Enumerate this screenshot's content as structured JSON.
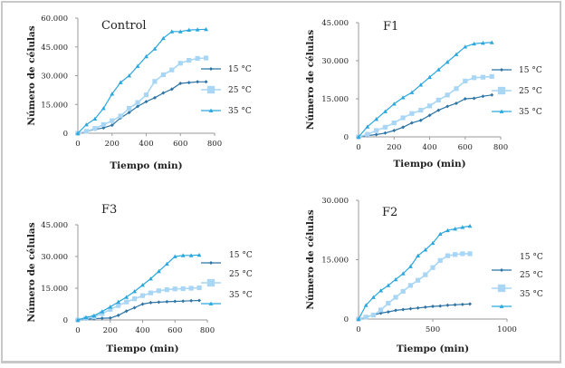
{
  "colors": {
    "15": "#2e75a6",
    "25": "#a8d6f4",
    "35": "#2aa7dd",
    "axis": "#9a9a9a"
  },
  "chart_data": [
    {
      "type": "line",
      "title": "Control",
      "xlabel": "Tiempo (min)",
      "ylabel": "Número de células",
      "xlim": [
        0,
        800
      ],
      "ylim": [
        0,
        60000
      ],
      "xticks": [
        0,
        200,
        400,
        600,
        800
      ],
      "xtick_labels": [
        "0",
        "200",
        "400",
        "600",
        "800"
      ],
      "yticks": [
        0,
        15000,
        30000,
        45000,
        60000
      ],
      "ytick_labels": [
        "0",
        "15.000",
        "30.000",
        "45.000",
        "60.000"
      ],
      "legend": "right",
      "legend_style": "inline",
      "x": [
        0,
        50,
        100,
        150,
        200,
        250,
        300,
        350,
        400,
        450,
        500,
        550,
        600,
        650,
        700,
        750
      ],
      "series": [
        {
          "name": "15 °C",
          "key": "15",
          "marker": "diamond",
          "values": [
            0,
            1000,
            2000,
            2800,
            4200,
            8000,
            10800,
            14000,
            16500,
            18500,
            21000,
            23000,
            26000,
            26400,
            26800,
            26800
          ]
        },
        {
          "name": "25 °C",
          "key": "25",
          "marker": "square",
          "values": [
            0,
            1000,
            2500,
            4500,
            6500,
            9000,
            13000,
            16000,
            20000,
            27000,
            30500,
            33000,
            36500,
            38000,
            39000,
            39200
          ]
        },
        {
          "name": "35 °C",
          "key": "35",
          "marker": "triangle",
          "values": [
            0,
            4500,
            7500,
            13000,
            20500,
            26500,
            30000,
            35000,
            40000,
            44000,
            49500,
            53000,
            53000,
            53800,
            54000,
            54200
          ]
        }
      ]
    },
    {
      "type": "line",
      "title": "F1",
      "xlabel": "Tiempo (min)",
      "ylabel": "Número de células",
      "xlim": [
        0,
        800
      ],
      "ylim": [
        0,
        45000
      ],
      "xticks": [
        0,
        200,
        400,
        600,
        800
      ],
      "xtick_labels": [
        "0",
        "200",
        "400",
        "600",
        "800"
      ],
      "yticks": [
        0,
        15000,
        30000,
        45000
      ],
      "ytick_labels": [
        "0",
        "15.000",
        "30.000",
        "45.000"
      ],
      "legend": "right",
      "legend_style": "inline",
      "x": [
        0,
        50,
        100,
        150,
        200,
        250,
        300,
        350,
        400,
        450,
        500,
        550,
        600,
        650,
        700,
        750
      ],
      "series": [
        {
          "name": "15 °C",
          "key": "15",
          "marker": "diamond",
          "values": [
            0,
            500,
            900,
            1500,
            2500,
            3800,
            5500,
            6500,
            8500,
            10500,
            12000,
            13200,
            15000,
            15200,
            16000,
            16500
          ]
        },
        {
          "name": "25 °C",
          "key": "25",
          "marker": "square",
          "values": [
            0,
            1000,
            2500,
            3800,
            5500,
            7500,
            9200,
            10500,
            12200,
            14500,
            16500,
            19000,
            22000,
            23300,
            23500,
            23800
          ]
        },
        {
          "name": "35 °C",
          "key": "35",
          "marker": "triangle",
          "values": [
            0,
            4000,
            7000,
            10000,
            13000,
            15500,
            17500,
            20500,
            23500,
            26500,
            29500,
            32500,
            35500,
            36700,
            37000,
            37200
          ]
        }
      ]
    },
    {
      "type": "line",
      "title": "F3",
      "xlabel": "Tiempo (min)",
      "ylabel": "Número de células",
      "xlim": [
        0,
        800
      ],
      "ylim": [
        0,
        45000
      ],
      "xticks": [
        0,
        200,
        400,
        600,
        800
      ],
      "xtick_labels": [
        "0",
        "200",
        "400",
        "600",
        "800"
      ],
      "yticks": [
        0,
        15000,
        30000,
        45000
      ],
      "ytick_labels": [
        "0",
        "15.000",
        "30.000",
        "45.000"
      ],
      "legend": "right",
      "legend_style": "offset",
      "x": [
        0,
        50,
        100,
        150,
        200,
        250,
        300,
        350,
        400,
        450,
        500,
        550,
        600,
        650,
        700,
        750
      ],
      "series": [
        {
          "name": "15 °C",
          "key": "15",
          "marker": "diamond",
          "values": [
            0,
            400,
            600,
            800,
            900,
            2200,
            4200,
            5800,
            7500,
            8200,
            8400,
            8600,
            8800,
            8900,
            9100,
            9200
          ]
        },
        {
          "name": "25 °C",
          "key": "25",
          "marker": "square",
          "values": [
            0,
            800,
            1500,
            3000,
            5000,
            6800,
            8500,
            10000,
            11500,
            12800,
            13800,
            14300,
            14700,
            14800,
            15000,
            15200
          ]
        },
        {
          "name": "35 °C",
          "key": "35",
          "marker": "triangle",
          "values": [
            0,
            1200,
            2000,
            4000,
            6200,
            8500,
            10800,
            13500,
            16500,
            19500,
            23000,
            26500,
            30000,
            30500,
            30500,
            30700
          ]
        }
      ]
    },
    {
      "type": "line",
      "title": "F2",
      "xlabel": "Tiempo (min)",
      "ylabel": "Número de células",
      "xlim": [
        0,
        1000
      ],
      "ylim": [
        0,
        30000
      ],
      "xticks": [
        0,
        500,
        1000
      ],
      "xtick_labels": [
        "0",
        "500",
        "1000"
      ],
      "yticks": [
        0,
        15000,
        30000
      ],
      "ytick_labels": [
        "0",
        "15.000",
        "30.000"
      ],
      "legend": "right",
      "legend_style": "offset",
      "x": [
        0,
        50,
        100,
        150,
        200,
        250,
        300,
        350,
        400,
        450,
        500,
        550,
        600,
        650,
        700,
        750
      ],
      "series": [
        {
          "name": "15 °C",
          "key": "15",
          "marker": "diamond",
          "values": [
            0,
            500,
            1000,
            1500,
            1800,
            2200,
            2400,
            2600,
            2800,
            3000,
            3200,
            3300,
            3500,
            3600,
            3700,
            3800
          ]
        },
        {
          "name": "25 °C",
          "key": "25",
          "marker": "square",
          "values": [
            0,
            500,
            1000,
            2300,
            4000,
            5500,
            7000,
            8500,
            9800,
            11200,
            13000,
            14800,
            16000,
            16300,
            16500,
            16500
          ]
        },
        {
          "name": "35 °C",
          "key": "35",
          "marker": "triangle",
          "values": [
            0,
            3500,
            5500,
            7200,
            8500,
            10000,
            11500,
            13300,
            16000,
            17500,
            19200,
            21500,
            22400,
            22800,
            23200,
            23500
          ]
        }
      ]
    }
  ]
}
